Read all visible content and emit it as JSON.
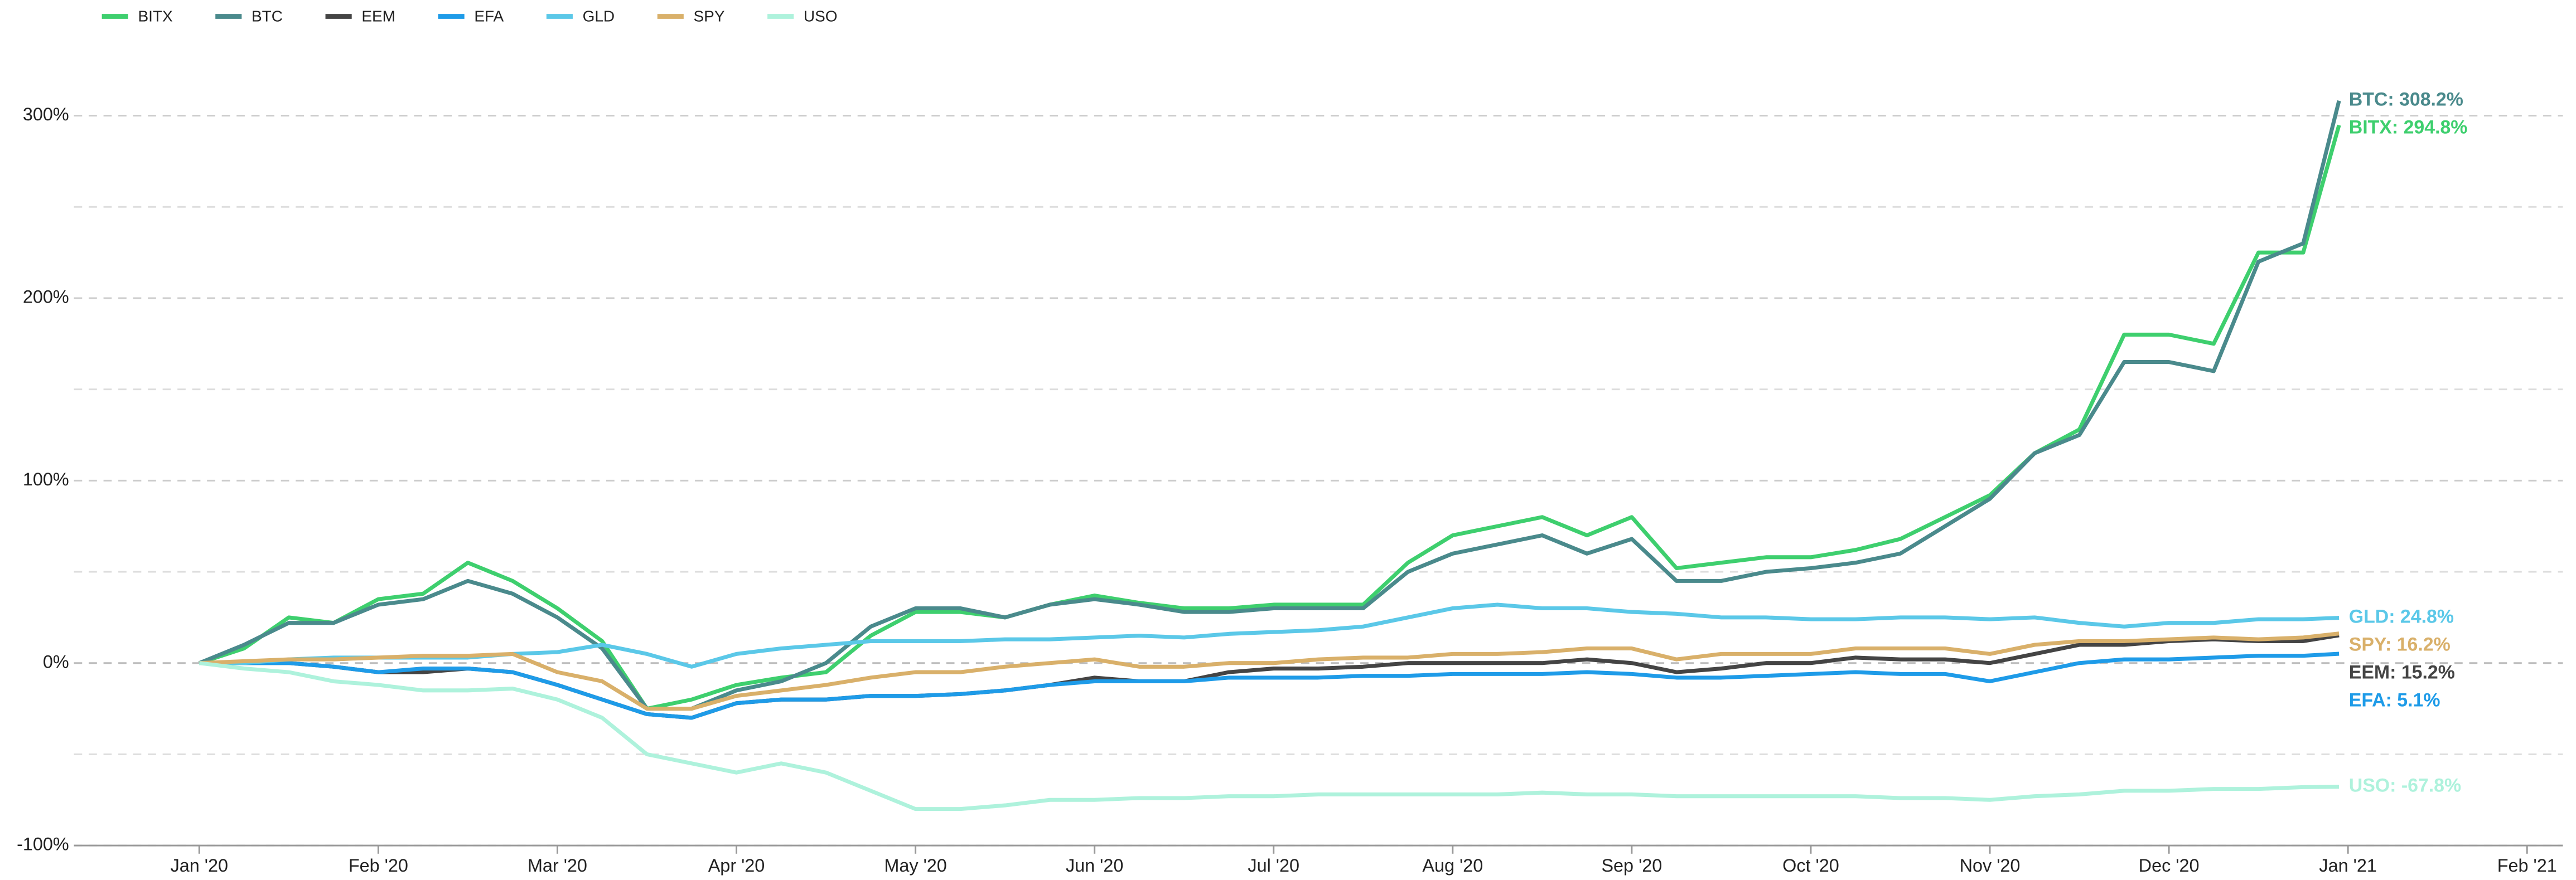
{
  "chart_data": {
    "type": "line",
    "xlim": [
      -0.7,
      13.2
    ],
    "xticks": [
      {
        "value": 0,
        "label": "Jan '20"
      },
      {
        "value": 1,
        "label": "Feb '20"
      },
      {
        "value": 2,
        "label": "Mar '20"
      },
      {
        "value": 3,
        "label": "Apr '20"
      },
      {
        "value": 4,
        "label": "May '20"
      },
      {
        "value": 5,
        "label": "Jun '20"
      },
      {
        "value": 6,
        "label": "Jul '20"
      },
      {
        "value": 7,
        "label": "Aug '20"
      },
      {
        "value": 8,
        "label": "Sep '20"
      },
      {
        "value": 9,
        "label": "Oct '20"
      },
      {
        "value": 10,
        "label": "Nov '20"
      },
      {
        "value": 11,
        "label": "Dec '20"
      },
      {
        "value": 12,
        "label": "Jan '21"
      },
      {
        "value": 13,
        "label": "Feb '21"
      }
    ],
    "ylim": [
      -100,
      340
    ],
    "yticks": [
      {
        "value": -100,
        "label": "-100%"
      },
      {
        "value": 0,
        "label": "0%"
      },
      {
        "value": 100,
        "label": "100%"
      },
      {
        "value": 200,
        "label": "200%"
      },
      {
        "value": 300,
        "label": "300%"
      }
    ],
    "minor_yticks": [
      -50,
      50,
      150,
      250
    ],
    "grid": true,
    "legend": "top-left",
    "x": [
      0,
      0.25,
      0.5,
      0.75,
      1,
      1.25,
      1.5,
      1.75,
      2,
      2.25,
      2.5,
      2.75,
      3,
      3.25,
      3.5,
      3.75,
      4,
      4.25,
      4.5,
      4.75,
      5,
      5.25,
      5.5,
      5.75,
      6,
      6.25,
      6.5,
      6.75,
      7,
      7.25,
      7.5,
      7.75,
      8,
      8.25,
      8.5,
      8.75,
      9,
      9.25,
      9.5,
      9.75,
      10,
      10.25,
      10.5,
      10.75,
      11,
      11.25,
      11.5,
      11.75,
      11.95
    ],
    "series": [
      {
        "name": "BITX",
        "color": "#3ecf6e",
        "end_label": "BITX: 294.8%",
        "values": [
          0,
          8,
          25,
          22,
          35,
          38,
          55,
          45,
          30,
          12,
          -25,
          -20,
          -12,
          -8,
          -5,
          15,
          28,
          28,
          25,
          32,
          37,
          33,
          30,
          30,
          32,
          32,
          32,
          55,
          70,
          75,
          80,
          70,
          80,
          52,
          55,
          58,
          58,
          62,
          68,
          80,
          92,
          115,
          128,
          180,
          180,
          175,
          225,
          225,
          294.8
        ]
      },
      {
        "name": "BTC",
        "color": "#4a8a8c",
        "end_label": "BTC: 308.2%",
        "values": [
          0,
          10,
          22,
          22,
          32,
          35,
          45,
          38,
          25,
          8,
          -25,
          -25,
          -15,
          -10,
          0,
          20,
          30,
          30,
          25,
          32,
          35,
          32,
          28,
          28,
          30,
          30,
          30,
          50,
          60,
          65,
          70,
          60,
          68,
          45,
          45,
          50,
          52,
          55,
          60,
          75,
          90,
          115,
          125,
          165,
          165,
          160,
          220,
          230,
          308.2
        ]
      },
      {
        "name": "EEM",
        "color": "#444444",
        "end_label": "EEM: 15.2%",
        "values": [
          0,
          0,
          0,
          -2,
          -5,
          -5,
          -3,
          -5,
          -12,
          -20,
          -28,
          -30,
          -22,
          -20,
          -20,
          -18,
          -18,
          -17,
          -15,
          -12,
          -8,
          -10,
          -10,
          -5,
          -3,
          -3,
          -2,
          0,
          0,
          0,
          0,
          2,
          0,
          -5,
          -3,
          0,
          0,
          3,
          2,
          2,
          0,
          5,
          10,
          10,
          12,
          13,
          12,
          12,
          15.2
        ]
      },
      {
        "name": "EFA",
        "color": "#1e9be8",
        "end_label": "EFA: 5.1%",
        "values": [
          0,
          0,
          0,
          -2,
          -5,
          -3,
          -3,
          -5,
          -12,
          -20,
          -28,
          -30,
          -22,
          -20,
          -20,
          -18,
          -18,
          -17,
          -15,
          -12,
          -10,
          -10,
          -10,
          -8,
          -8,
          -8,
          -7,
          -7,
          -6,
          -6,
          -6,
          -5,
          -6,
          -8,
          -8,
          -7,
          -6,
          -5,
          -6,
          -6,
          -10,
          -5,
          0,
          2,
          2,
          3,
          4,
          4,
          5.1
        ]
      },
      {
        "name": "GLD",
        "color": "#5bc8e8",
        "end_label": "GLD: 24.8%",
        "values": [
          0,
          0,
          2,
          3,
          3,
          3,
          3,
          5,
          6,
          10,
          5,
          -2,
          5,
          8,
          10,
          12,
          12,
          12,
          13,
          13,
          14,
          15,
          14,
          16,
          17,
          18,
          20,
          25,
          30,
          32,
          30,
          30,
          28,
          27,
          25,
          25,
          24,
          24,
          25,
          25,
          24,
          25,
          22,
          20,
          22,
          22,
          24,
          24,
          24.8
        ]
      },
      {
        "name": "SPY",
        "color": "#d9b06a",
        "end_label": "SPY: 16.2%",
        "values": [
          0,
          1,
          2,
          2,
          3,
          4,
          4,
          5,
          -5,
          -10,
          -25,
          -25,
          -18,
          -15,
          -12,
          -8,
          -5,
          -5,
          -2,
          0,
          2,
          -2,
          -2,
          0,
          0,
          2,
          3,
          3,
          5,
          5,
          6,
          8,
          8,
          2,
          5,
          5,
          5,
          8,
          8,
          8,
          5,
          10,
          12,
          12,
          13,
          14,
          13,
          14,
          16.2
        ]
      },
      {
        "name": "USO",
        "color": "#aef2dc",
        "end_label": "USO: -67.8%",
        "values": [
          0,
          -3,
          -5,
          -10,
          -12,
          -15,
          -15,
          -14,
          -20,
          -30,
          -50,
          -55,
          -60,
          -55,
          -60,
          -70,
          -80,
          -80,
          -78,
          -75,
          -75,
          -74,
          -74,
          -73,
          -73,
          -72,
          -72,
          -72,
          -72,
          -72,
          -71,
          -72,
          -72,
          -73,
          -73,
          -73,
          -73,
          -73,
          -74,
          -74,
          -75,
          -73,
          -72,
          -70,
          -70,
          -69,
          -69,
          -68,
          -67.8
        ]
      }
    ]
  }
}
